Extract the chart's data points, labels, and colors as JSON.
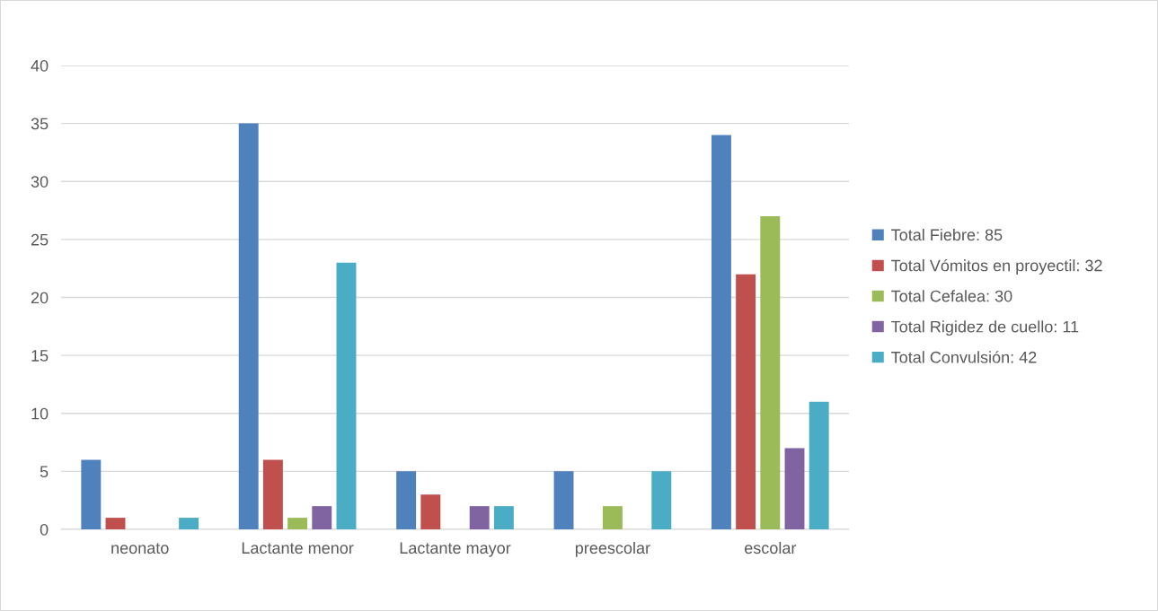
{
  "chart_data": {
    "type": "bar",
    "categories": [
      "neonato",
      "Lactante menor",
      "Lactante mayor",
      "preescolar",
      "escolar"
    ],
    "series": [
      {
        "name": "Total Fiebre: 85",
        "color": "#4f81bd",
        "values": [
          6,
          35,
          5,
          5,
          34
        ]
      },
      {
        "name": "Total Vómitos en proyectil: 32",
        "color": "#c0504d",
        "values": [
          1,
          6,
          3,
          0,
          22
        ]
      },
      {
        "name": "Total Cefalea: 30",
        "color": "#9bbb59",
        "values": [
          0,
          1,
          0,
          2,
          27
        ]
      },
      {
        "name": "Total Rigidez de cuello: 11",
        "color": "#8064a2",
        "values": [
          0,
          2,
          2,
          0,
          7
        ]
      },
      {
        "name": "Total Convulsión: 42",
        "color": "#4bacc6",
        "values": [
          1,
          23,
          2,
          5,
          11
        ]
      }
    ],
    "ylim": [
      0,
      40
    ],
    "yticks": [
      0,
      5,
      10,
      15,
      20,
      25,
      30,
      35,
      40
    ],
    "grid": "y",
    "legend": "right"
  }
}
